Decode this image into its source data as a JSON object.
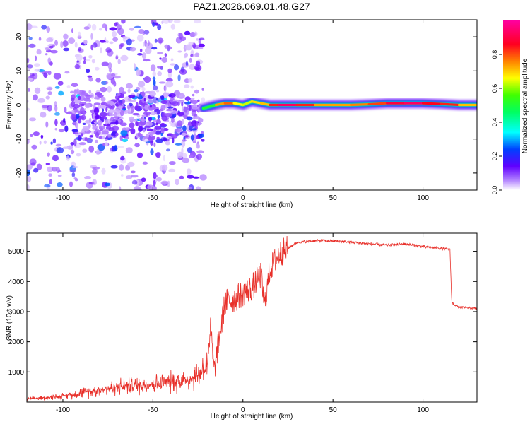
{
  "title": "PAZ1.2026.069.01.48.G27",
  "chart_data": [
    {
      "type": "heatmap",
      "xlabel": "Height of straight line (km)",
      "ylabel": "Frequency (Hz)",
      "xlim": [
        -120,
        130
      ],
      "ylim": [
        -25,
        25
      ],
      "xticks": [
        -100,
        -50,
        0,
        50,
        100
      ],
      "yticks": [
        -20,
        -10,
        0,
        10,
        20
      ],
      "xtick_labels": [
        "-100",
        "-50",
        "0",
        "50",
        "100"
      ],
      "ytick_labels": [
        "-20",
        "-10",
        "0",
        "10",
        "20"
      ],
      "colorbar": {
        "label": "Normalized spectral amplitude",
        "range": [
          0,
          1
        ],
        "ticks": [
          0.0,
          0.2,
          0.4,
          0.6,
          0.8
        ],
        "tick_labels": [
          "0.0",
          "0.2",
          "0.4",
          "0.6",
          "0.8"
        ],
        "colors": [
          "#ffffff",
          "#a060ff",
          "#6000ff",
          "#0040ff",
          "#00ffff",
          "#00ff60",
          "#40ff00",
          "#ffff00",
          "#ff8000",
          "#ff0020",
          "#ff00a0"
        ]
      },
      "ridge": {
        "x": [
          -22,
          -15,
          -10,
          -5,
          0,
          5,
          10,
          15,
          20,
          30,
          40,
          50,
          60,
          70,
          80,
          90,
          100,
          110,
          120,
          130
        ],
        "freq": [
          -1,
          0,
          0.5,
          0.5,
          0,
          1,
          0.5,
          0,
          0,
          0,
          0,
          0,
          0,
          0.2,
          0.5,
          0.5,
          0.5,
          0.3,
          0,
          0
        ],
        "amplitude": [
          0.4,
          0.7,
          0.85,
          0.8,
          0.6,
          0.75,
          0.7,
          0.8,
          0.95,
          0.95,
          0.8,
          0.75,
          0.8,
          0.8,
          0.9,
          0.95,
          0.95,
          0.85,
          0.9,
          0.6
        ]
      },
      "noise_region": {
        "x": [
          -120,
          -22
        ],
        "freq": [
          -25,
          25
        ]
      }
    },
    {
      "type": "line",
      "xlabel": "Height of straight line (km)",
      "ylabel": "SNR (10 * v/v)",
      "xlim": [
        -120,
        130
      ],
      "ylim": [
        0,
        5600
      ],
      "xticks": [
        -100,
        -50,
        0,
        50,
        100
      ],
      "yticks": [
        1000,
        2000,
        3000,
        4000,
        5000
      ],
      "xtick_labels": [
        "-100",
        "-50",
        "0",
        "50",
        "100"
      ],
      "ytick_labels": [
        "1000",
        "2000",
        "3000",
        "4000",
        "5000"
      ],
      "color": "#e8302a",
      "series": {
        "x": [
          -120,
          -110,
          -100,
          -90,
          -80,
          -70,
          -60,
          -50,
          -40,
          -30,
          -25,
          -20,
          -18,
          -16,
          -14,
          -12,
          -10,
          -5,
          0,
          5,
          10,
          12,
          15,
          20,
          25,
          30,
          40,
          50,
          60,
          70,
          80,
          90,
          100,
          110,
          115,
          116,
          118,
          120,
          130
        ],
        "y": [
          100,
          150,
          200,
          300,
          400,
          500,
          550,
          600,
          650,
          750,
          900,
          1300,
          2500,
          1000,
          1800,
          2500,
          3300,
          3400,
          3600,
          3800,
          4200,
          3200,
          4400,
          4900,
          5100,
          5300,
          5350,
          5350,
          5300,
          5250,
          5200,
          5250,
          5150,
          5100,
          5050,
          3300,
          3200,
          3150,
          3100
        ]
      }
    }
  ]
}
